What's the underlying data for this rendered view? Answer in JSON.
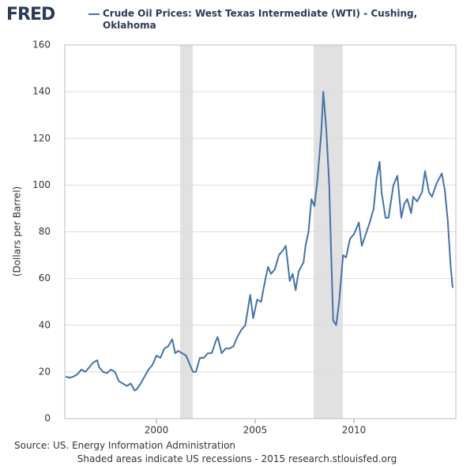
{
  "chart_data": {
    "type": "line",
    "logo": "FRED",
    "y_label": "(Dollars per Barrel)",
    "source": "Source: US. Energy Information Administration",
    "note": "Shaded areas indicate US recessions - 2015 research.stlouisfed.org",
    "xlim": [
      1995.36,
      2015.16
    ],
    "xticks": [
      2000,
      2005,
      2010
    ],
    "ylim": [
      0,
      160
    ],
    "yticks": [
      0,
      20,
      40,
      60,
      80,
      100,
      120,
      140,
      160
    ],
    "grid": true,
    "recession_color": "#e1e1e1",
    "recessions": [
      [
        2001.2,
        2001.84
      ],
      [
        2007.96,
        2009.44
      ]
    ],
    "series": [
      {
        "name": "Crude Oil Prices: West Texas Intermediate (WTI) - Cushing, Oklahoma",
        "color": "#4572a7",
        "x": [
          1995.4,
          1995.6,
          1995.8,
          1996.0,
          1996.2,
          1996.4,
          1996.6,
          1996.8,
          1997.0,
          1997.1,
          1997.3,
          1997.5,
          1997.7,
          1997.9,
          1998.1,
          1998.3,
          1998.5,
          1998.7,
          1998.9,
          1999.0,
          1999.2,
          1999.4,
          1999.6,
          1999.8,
          2000.0,
          2000.2,
          2000.4,
          2000.6,
          2000.8,
          2000.95,
          2001.1,
          2001.3,
          2001.5,
          2001.7,
          2001.85,
          2002.0,
          2002.2,
          2002.4,
          2002.6,
          2002.8,
          2003.0,
          2003.1,
          2003.3,
          2003.5,
          2003.7,
          2003.9,
          2004.1,
          2004.3,
          2004.5,
          2004.75,
          2004.9,
          2005.1,
          2005.3,
          2005.5,
          2005.65,
          2005.8,
          2006.0,
          2006.2,
          2006.4,
          2006.55,
          2006.75,
          2006.9,
          2007.05,
          2007.2,
          2007.45,
          2007.55,
          2007.7,
          2007.85,
          2008.0,
          2008.15,
          2008.35,
          2008.45,
          2008.6,
          2008.75,
          2008.85,
          2008.95,
          2009.1,
          2009.25,
          2009.45,
          2009.6,
          2009.8,
          2010.0,
          2010.25,
          2010.4,
          2010.6,
          2010.8,
          2011.0,
          2011.15,
          2011.3,
          2011.4,
          2011.6,
          2011.75,
          2012.0,
          2012.2,
          2012.4,
          2012.55,
          2012.7,
          2012.9,
          2013.0,
          2013.2,
          2013.45,
          2013.6,
          2013.8,
          2013.95,
          2014.2,
          2014.45,
          2014.6,
          2014.75,
          2014.9,
          2015.0
        ],
        "values": [
          18,
          17.5,
          18,
          19,
          21,
          20,
          22,
          24,
          25,
          22,
          20,
          19.5,
          21,
          20,
          16,
          15,
          14,
          15,
          12,
          12.5,
          15,
          18,
          21,
          23,
          27,
          26,
          30,
          31,
          34,
          28,
          29,
          28,
          27,
          23,
          20,
          20,
          26,
          26,
          28,
          28,
          33,
          35,
          28,
          30,
          30,
          31,
          35,
          38,
          40,
          53,
          43,
          51,
          50,
          59,
          65,
          62,
          64,
          70,
          72,
          74,
          59,
          62,
          55,
          63,
          67,
          74,
          80,
          94,
          91,
          102,
          123,
          140,
          124,
          100,
          70,
          42,
          40,
          50,
          70,
          69,
          77,
          79,
          84,
          74,
          79,
          84,
          90,
          103,
          110,
          97,
          86,
          86,
          100,
          104,
          86,
          92,
          94,
          88,
          95,
          93,
          97,
          106,
          97,
          95,
          101,
          105,
          98,
          85,
          65,
          56
        ]
      }
    ]
  }
}
